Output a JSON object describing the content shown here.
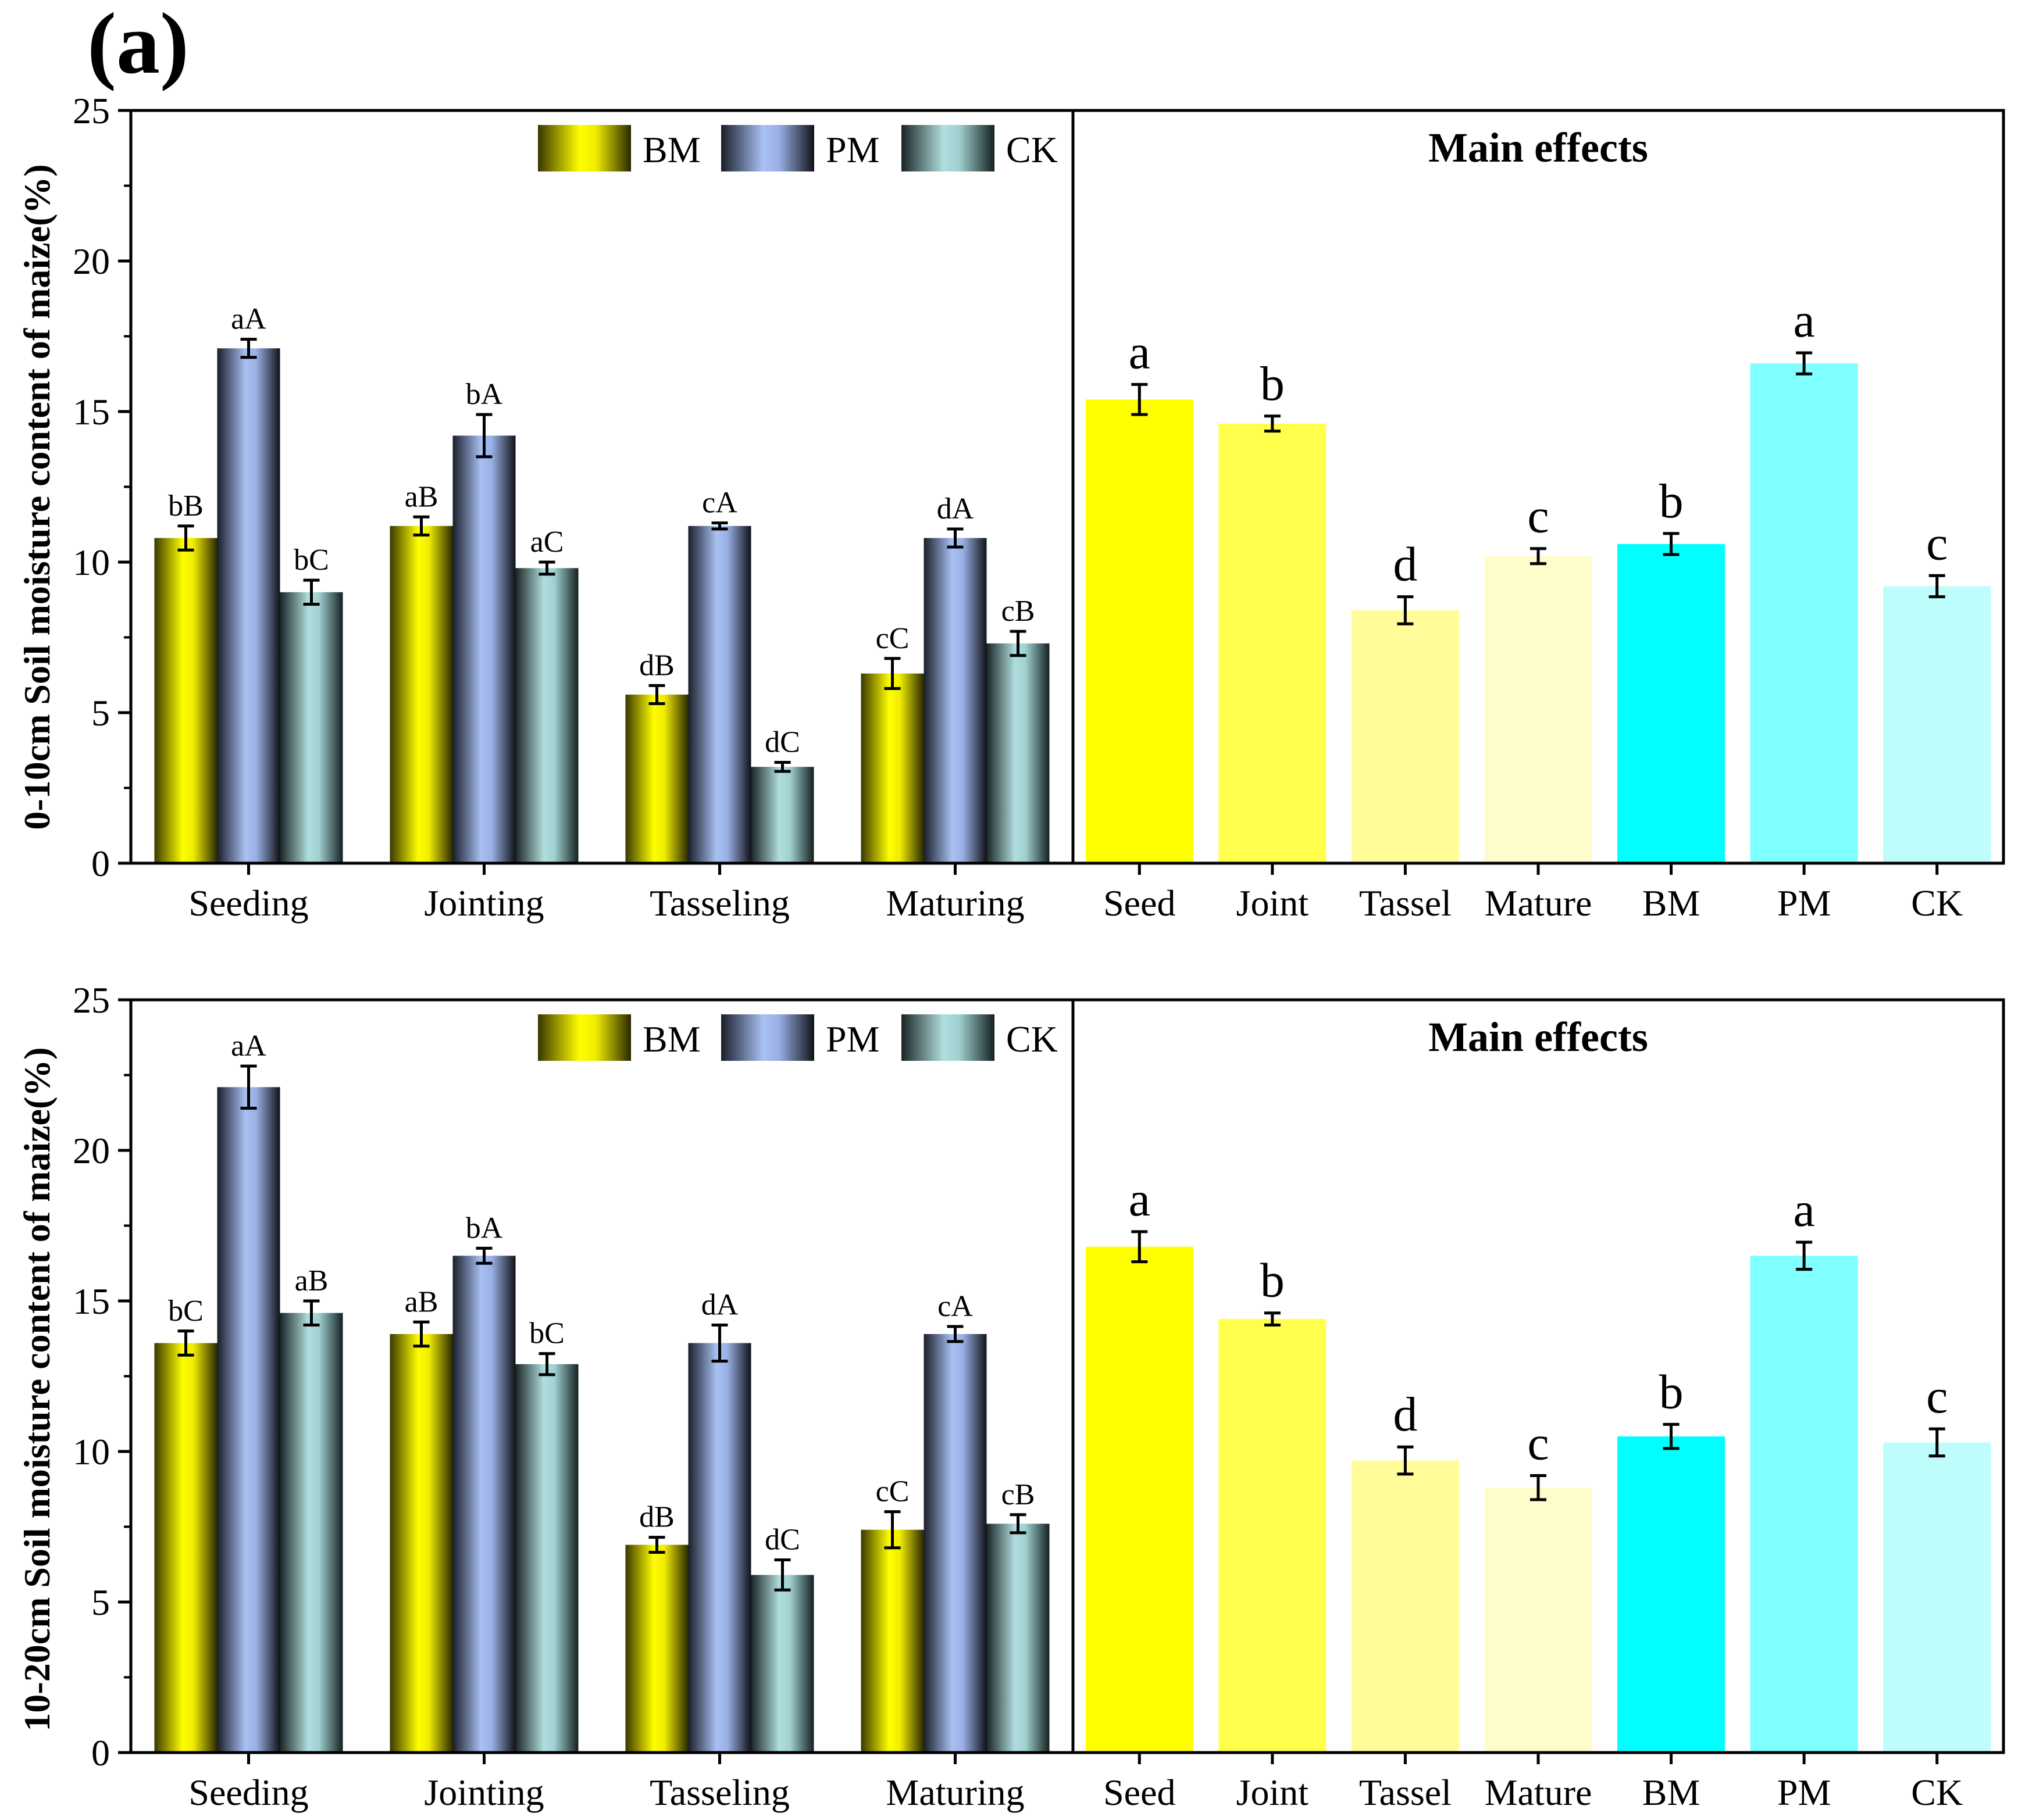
{
  "figure": {
    "panel_label": "(a)",
    "ylabels": [
      "0-10cm Soil moisture content  of maize(%)",
      "10-20cm Soil moisture content  of maize(%)"
    ]
  },
  "colors": {
    "BM": "#f5f000",
    "PM": "#9fb3e6",
    "CK": "#9fc8c8"
  },
  "chart_data": [
    {
      "type": "bar",
      "panel": "top-left",
      "title": "",
      "ylabel": "0-10cm Soil moisture content  of maize(%)",
      "ylim": [
        0,
        25
      ],
      "yticks": [
        0,
        5,
        10,
        15,
        20,
        25
      ],
      "categories": [
        "Seeding",
        "Jointing",
        "Tasseling",
        "Maturing"
      ],
      "legend": [
        "BM",
        "PM",
        "CK"
      ],
      "legend_position": "top-right",
      "series": [
        {
          "name": "BM",
          "values": [
            10.8,
            11.2,
            5.6,
            6.3
          ],
          "errors": [
            0.4,
            0.3,
            0.3,
            0.5
          ],
          "labels": [
            "bB",
            "aB",
            "dB",
            "cC"
          ]
        },
        {
          "name": "PM",
          "values": [
            17.1,
            14.2,
            11.2,
            10.8
          ],
          "errors": [
            0.3,
            0.7,
            0.1,
            0.3
          ],
          "labels": [
            "aA",
            "bA",
            "cA",
            "dA"
          ]
        },
        {
          "name": "CK",
          "values": [
            9.0,
            9.8,
            3.2,
            7.3
          ],
          "errors": [
            0.4,
            0.2,
            0.15,
            0.4
          ],
          "labels": [
            "bC",
            "aC",
            "dC",
            "cB"
          ]
        }
      ]
    },
    {
      "type": "bar",
      "panel": "top-right",
      "title": "Main effects",
      "ylim": [
        0,
        25
      ],
      "categories": [
        "Seed",
        "Joint",
        "Tassel",
        "Mature",
        "BM",
        "PM",
        "CK"
      ],
      "values": [
        15.4,
        14.6,
        8.4,
        10.2,
        10.6,
        16.6,
        9.2
      ],
      "errors": [
        0.5,
        0.25,
        0.45,
        0.25,
        0.35,
        0.35,
        0.35
      ],
      "labels": [
        "a",
        "b",
        "d",
        "c",
        "b",
        "a",
        "c"
      ],
      "bar_colors": [
        "#ffff00",
        "#ffff4c",
        "#fffc99",
        "#fffccc",
        "#00ffff",
        "#7fffff",
        "#bffcfc"
      ]
    },
    {
      "type": "bar",
      "panel": "bottom-left",
      "title": "",
      "ylabel": "10-20cm Soil moisture content  of maize(%)",
      "ylim": [
        0,
        25
      ],
      "yticks": [
        0,
        5,
        10,
        15,
        20,
        25
      ],
      "categories": [
        "Seeding",
        "Jointing",
        "Tasseling",
        "Maturing"
      ],
      "legend": [
        "BM",
        "PM",
        "CK"
      ],
      "legend_position": "top-right",
      "series": [
        {
          "name": "BM",
          "values": [
            13.6,
            13.9,
            6.9,
            7.4
          ],
          "errors": [
            0.4,
            0.4,
            0.25,
            0.6
          ],
          "labels": [
            "bC",
            "aB",
            "dB",
            "cC"
          ]
        },
        {
          "name": "PM",
          "values": [
            22.1,
            16.5,
            13.6,
            13.9
          ],
          "errors": [
            0.7,
            0.25,
            0.6,
            0.25
          ],
          "labels": [
            "aA",
            "bA",
            "dA",
            "cA"
          ]
        },
        {
          "name": "CK",
          "values": [
            14.6,
            12.9,
            5.9,
            7.6
          ],
          "errors": [
            0.4,
            0.35,
            0.5,
            0.3
          ],
          "labels": [
            "aB",
            "bC",
            "dC",
            "cB"
          ]
        }
      ]
    },
    {
      "type": "bar",
      "panel": "bottom-right",
      "title": "Main effects",
      "ylim": [
        0,
        25
      ],
      "categories": [
        "Seed",
        "Joint",
        "Tassel",
        "Mature",
        "BM",
        "PM",
        "CK"
      ],
      "values": [
        16.8,
        14.4,
        9.7,
        8.8,
        10.5,
        16.5,
        10.3
      ],
      "errors": [
        0.5,
        0.2,
        0.45,
        0.4,
        0.4,
        0.45,
        0.45
      ],
      "labels": [
        "a",
        "b",
        "d",
        "c",
        "b",
        "a",
        "c"
      ],
      "bar_colors": [
        "#ffff00",
        "#ffff4c",
        "#fffc99",
        "#fffccc",
        "#00ffff",
        "#7fffff",
        "#bffcfc"
      ]
    }
  ]
}
